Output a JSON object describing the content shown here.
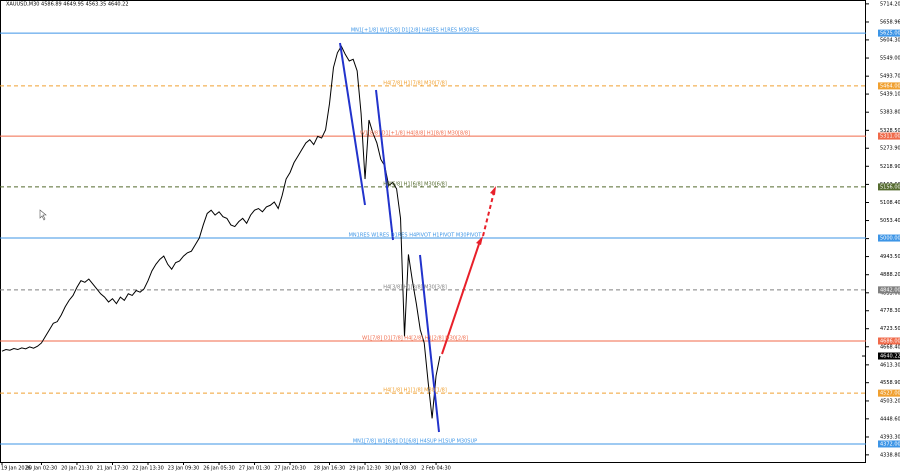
{
  "chart_data": {
    "type": "line",
    "title": "XAUUSD,M30  4586.89 4649.95 4563.35 4640.22",
    "color": "#000000",
    "ylim": [
      4317,
      5726
    ],
    "yticks": [
      {
        "value": 5714.2,
        "label": "5714.20"
      },
      {
        "value": 5658.96,
        "label": "5658.96"
      },
      {
        "value": 5604.3,
        "label": "5604.30"
      },
      {
        "value": 5549,
        "label": "5549.00"
      },
      {
        "value": 5493.7,
        "label": "5493.70"
      },
      {
        "value": 5439.1,
        "label": "5439.10"
      },
      {
        "value": 5383.8,
        "label": "5383.80"
      },
      {
        "value": 5328.5,
        "label": "5328.50"
      },
      {
        "value": 5273.9,
        "label": "5273.90"
      },
      {
        "value": 5218.9,
        "label": "5218.90"
      },
      {
        "value": 5163.6,
        "label": "5163.60"
      },
      {
        "value": 5108.4,
        "label": "5108.40"
      },
      {
        "value": 5053.4,
        "label": "5053.40"
      },
      {
        "value": 4998.3,
        "label": "4998.30"
      },
      {
        "value": 4943.5,
        "label": "4943.50"
      },
      {
        "value": 4888.2,
        "label": "4888.20"
      },
      {
        "value": 4833,
        "label": "4833.00"
      },
      {
        "value": 4778.3,
        "label": "4778.30"
      },
      {
        "value": 4723.5,
        "label": "4723.50"
      },
      {
        "value": 4668.4,
        "label": "4668.40"
      },
      {
        "value": 4613.3,
        "label": "4613.30"
      },
      {
        "value": 4558.9,
        "label": "4558.90"
      },
      {
        "value": 4503.2,
        "label": "4503.20"
      },
      {
        "value": 4448.6,
        "label": "4448.60"
      },
      {
        "value": 4393.3,
        "label": "4393.30"
      },
      {
        "value": 4338.8,
        "label": "4338.80"
      }
    ],
    "categories": [
      "19 Jan 2026",
      null,
      null,
      null,
      null,
      null,
      null,
      null,
      null,
      null,
      "20 Jan 02:30",
      null,
      null,
      null,
      null,
      null,
      null,
      null,
      null,
      "20 Jan 21:30",
      null,
      null,
      null,
      null,
      null,
      null,
      null,
      null,
      "21 Jan 17:30",
      null,
      null,
      null,
      null,
      null,
      null,
      null,
      null,
      "22 Jan 13:30",
      null,
      null,
      null,
      null,
      null,
      null,
      null,
      null,
      "23 Jan 09:30",
      null,
      null,
      null,
      null,
      null,
      null,
      null,
      null,
      "26 Jan 05:30",
      null,
      null,
      null,
      null,
      null,
      null,
      null,
      null,
      "27 Jan 01:30",
      null,
      null,
      null,
      null,
      null,
      null,
      null,
      null,
      "27 Jan 20:30",
      null,
      null,
      null,
      null,
      null,
      null,
      null,
      null,
      null,
      "28 Jan 16:30",
      null,
      null,
      null,
      null,
      null,
      null,
      null,
      null,
      "29 Jan 12:30",
      null,
      null,
      null,
      null,
      null,
      null,
      null,
      null,
      "30 Jan 08:30",
      null,
      null,
      null,
      null,
      null,
      null,
      null,
      null,
      "2 Feb 04:30",
      null
    ],
    "values": [
      4655,
      4660,
      4658,
      4663,
      4660,
      4665,
      4662,
      4668,
      4664,
      4670,
      4680,
      4700,
      4720,
      4740,
      4745,
      4765,
      4790,
      4810,
      4825,
      4850,
      4870,
      4865,
      4875,
      4860,
      4845,
      4830,
      4820,
      4805,
      4815,
      4800,
      4820,
      4810,
      4830,
      4825,
      4840,
      4835,
      4845,
      4870,
      4900,
      4920,
      4935,
      4945,
      4920,
      4905,
      4925,
      4930,
      4945,
      4955,
      4960,
      4980,
      5000,
      5040,
      5075,
      5085,
      5070,
      5080,
      5065,
      5060,
      5040,
      5035,
      5050,
      5060,
      5045,
      5070,
      5085,
      5090,
      5080,
      5095,
      5100,
      5110,
      5090,
      5130,
      5180,
      5200,
      5230,
      5250,
      5270,
      5290,
      5300,
      5285,
      5310,
      5305,
      5330,
      5410,
      5520,
      5565,
      5585,
      5560,
      5540,
      5545,
      5510,
      5380,
      5180,
      5360,
      5320,
      5290,
      5240,
      5220,
      5160,
      5170,
      5150,
      5060,
      4700,
      4950,
      4870,
      4800,
      4720,
      4680,
      4560,
      4450,
      4580,
      4640
    ],
    "levels": [
      {
        "text": "MN1[+1/8] W1[5/8] D1[2/8] H4RES H1RES M30RES",
        "value": 5625,
        "label": "5625.00",
        "color": "#3d95e6",
        "style": "solid"
      },
      {
        "text": "H4[7/8] H1[7/8] M30[7/8]",
        "value": 5464,
        "label": "5464.00",
        "color": "#f0a030",
        "style": "dashed"
      },
      {
        "text": "W1[8/8] D1[+1/8] H4[8/8] H1[8/8] M30[8/8]",
        "value": 5311,
        "label": "5311.00",
        "color": "#f06a4a",
        "style": "solid"
      },
      {
        "text": "H4[6/8] H1[6/8] M30[6/8]",
        "value": 5156,
        "label": "5156.00",
        "color": "#556b2f",
        "style": "dashed"
      },
      {
        "text": "MN1RES W1RES D1RES H4PIVOT H1PIVOT M30PIVOT",
        "value": 5000,
        "label": "5000.00",
        "color": "#3d95e6",
        "style": "solid"
      },
      {
        "text": "H4[3/8] H1[3/8] M30[3/8]",
        "value": 4842,
        "label": "4842.00",
        "color": "#808080",
        "style": "dashed"
      },
      {
        "text": "W1[7/8] D1[7/8] H4[2/8] H1[2/8] M30[2/8]",
        "value": 4686,
        "label": "4686.00",
        "color": "#f06a4a",
        "style": "solid"
      },
      {
        "text": "H4[1/8] H1[1/8] M30[1/8]",
        "value": 4527,
        "label": "4527.00",
        "color": "#f0a030",
        "style": "dashed"
      },
      {
        "text": "MN1[7/8] W1[6/8] D1[6/8] H4SUP H1SUP M30SUP",
        "value": 4372,
        "label": "4372.00",
        "color": "#3d95e6",
        "style": "solid"
      }
    ],
    "last_price": {
      "value": 4640.22,
      "label": "4640.22"
    }
  }
}
